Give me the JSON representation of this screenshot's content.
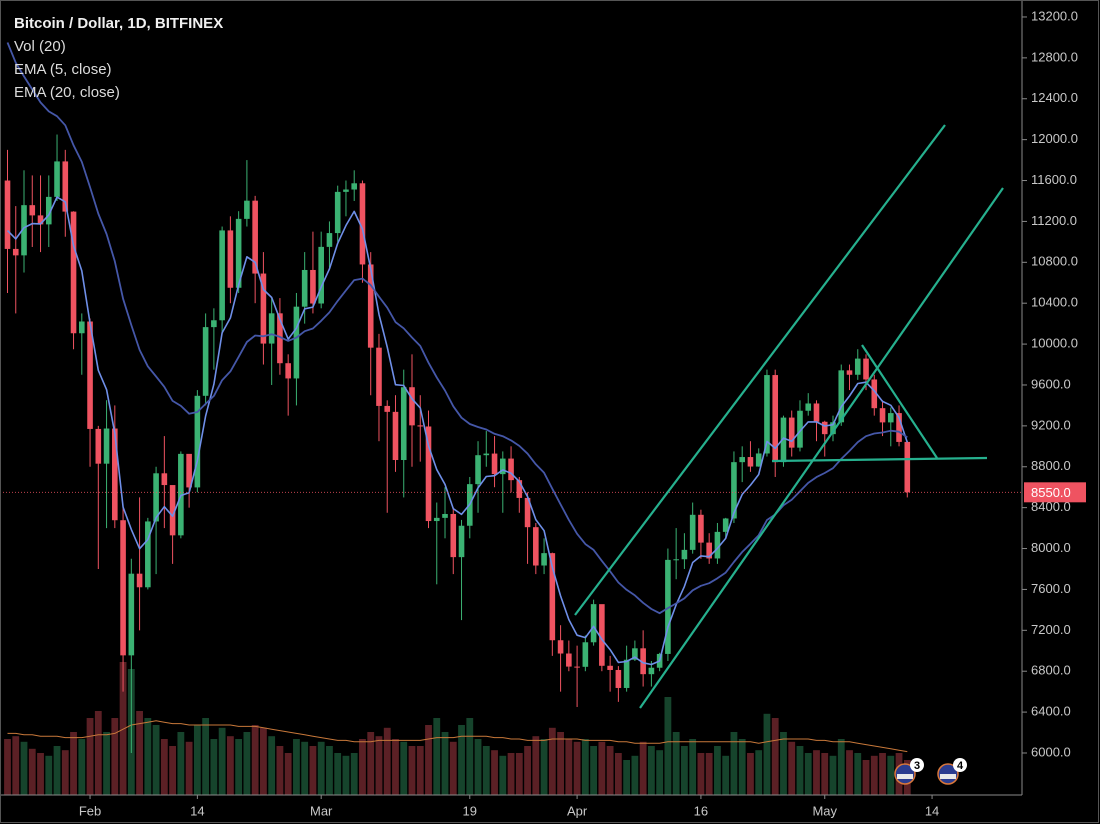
{
  "chart_data": {
    "type": "candlestick",
    "title": "Bitcoin / Dollar, 1D, BITFINEX",
    "categories": [
      null,
      null,
      null,
      null,
      null,
      null,
      null,
      null,
      null,
      null,
      "Feb",
      null,
      null,
      null,
      null,
      null,
      null,
      null,
      null,
      null,
      null,
      null,
      null,
      "14",
      null,
      null,
      null,
      null,
      null,
      null,
      null,
      null,
      null,
      null,
      null,
      null,
      null,
      null,
      "Mar",
      null,
      null,
      null,
      null,
      null,
      null,
      null,
      null,
      null,
      null,
      null,
      null,
      null,
      null,
      null,
      null,
      null,
      "19",
      null,
      null,
      null,
      null,
      null,
      null,
      null,
      null,
      null,
      null,
      null,
      null,
      "Apr",
      null,
      null,
      null,
      null,
      null,
      null,
      null,
      null,
      null,
      null,
      null,
      null,
      null,
      null,
      "16",
      null,
      null,
      null,
      null,
      null,
      null,
      null,
      null,
      null,
      null,
      null,
      null,
      null,
      null,
      "May",
      null,
      null,
      null,
      null,
      null,
      null,
      null,
      null,
      null,
      null,
      null,
      null,
      "14",
      null,
      null,
      null,
      null,
      null,
      null,
      null,
      null,
      null,
      null
    ],
    "open": [
      11600,
      10931,
      10868,
      11359,
      11259,
      11171,
      11440,
      11787,
      11296,
      10106,
      10221,
      9170,
      8830,
      9174,
      8277,
      6955,
      7754,
      7621,
      8265,
      8736,
      8621,
      8129,
      8926,
      8598,
      9494,
      10166,
      10233,
      11112,
      10551,
      11225,
      11403,
      10690,
      10005,
      10301,
      9813,
      9664,
      10366,
      10725,
      10397,
      10951,
      11086,
      11489,
      11512,
      11573,
      10779,
      9965,
      9395,
      9337,
      8866,
      9578,
      9205,
      9194,
      8269,
      8300,
      8338,
      7916,
      8223,
      8630,
      8913,
      8929,
      8728,
      8880,
      8669,
      8495,
      8209,
      7834,
      7955,
      7103,
      6973,
      6845,
      6843,
      7083,
      7456,
      6853,
      6812,
      6636,
      6912,
      7024,
      6771,
      6834,
      6969,
      7889,
      7895,
      7987,
      8330,
      8058,
      7903,
      8163,
      8294,
      8845,
      8895,
      8802,
      8930,
      9697,
      8845,
      9281,
      8987,
      9348,
      9419,
      9240,
      9119,
      9235,
      9743,
      9700,
      9858,
      9654,
      9373,
      9234,
      9325,
      9043,
      null,
      null,
      null,
      null,
      null,
      null,
      null,
      null,
      null,
      null,
      null,
      null,
      null
    ],
    "high": [
      11900,
      11350,
      11700,
      11650,
      11650,
      11650,
      12050,
      11900,
      11300,
      10300,
      10250,
      9200,
      9450,
      9400,
      8400,
      7900,
      8500,
      8300,
      8800,
      9100,
      8600,
      8950,
      8900,
      9550,
      10300,
      10350,
      11150,
      11250,
      11300,
      11800,
      11450,
      10900,
      10450,
      10450,
      9900,
      10500,
      10900,
      11100,
      11100,
      11200,
      11550,
      11600,
      11700,
      11600,
      10900,
      10100,
      9450,
      9500,
      9750,
      9900,
      9500,
      9350,
      8450,
      8600,
      8400,
      8280,
      8700,
      9050,
      9150,
      9100,
      8950,
      9000,
      8700,
      8550,
      8250,
      8100,
      7960,
      7250,
      7100,
      7050,
      7150,
      7500,
      7450,
      6950,
      6850,
      7050,
      7100,
      7200,
      6900,
      6980,
      8000,
      8200,
      8150,
      8450,
      8380,
      8150,
      8250,
      8300,
      8950,
      9000,
      9050,
      8980,
      9750,
      9750,
      9300,
      9350,
      9450,
      9520,
      9450,
      9250,
      9300,
      9800,
      9800,
      9950,
      9900,
      9700,
      9450,
      9380,
      9400,
      9050,
      null,
      null,
      null,
      null,
      null,
      null,
      null,
      null,
      null,
      null,
      null,
      null,
      null
    ],
    "low": [
      10500,
      10300,
      10700,
      10950,
      10900,
      10950,
      11400,
      11050,
      9950,
      9700,
      8800,
      7800,
      8200,
      8200,
      6600,
      6000,
      7200,
      7600,
      7750,
      8200,
      7850,
      8100,
      8400,
      8550,
      9400,
      9750,
      10100,
      10400,
      10500,
      11150,
      10400,
      9800,
      9600,
      9700,
      9300,
      9400,
      10200,
      10300,
      10350,
      10750,
      11000,
      11250,
      11400,
      10600,
      9500,
      9050,
      8350,
      8750,
      8500,
      8800,
      8850,
      8200,
      7650,
      8100,
      7750,
      7300,
      8100,
      8350,
      8800,
      8600,
      8350,
      8550,
      8350,
      7850,
      7750,
      7750,
      6950,
      6600,
      6800,
      6450,
      6800,
      7050,
      6800,
      6600,
      6500,
      6600,
      6900,
      6650,
      6650,
      6800,
      6900,
      7700,
      7800,
      7950,
      7900,
      7850,
      7850,
      8100,
      8250,
      8650,
      8750,
      8800,
      8900,
      8700,
      8800,
      8900,
      8950,
      9300,
      9050,
      8900,
      9050,
      9200,
      9550,
      9650,
      9550,
      9300,
      9100,
      9000,
      9000,
      8500,
      null,
      null,
      null,
      null,
      null,
      null,
      null,
      null,
      null,
      null,
      null,
      null,
      null
    ],
    "close": [
      10931,
      10868,
      11359,
      11259,
      11171,
      11440,
      11787,
      11296,
      10106,
      10221,
      9170,
      8830,
      9174,
      8277,
      6955,
      7754,
      7621,
      8265,
      8736,
      8621,
      8129,
      8926,
      8598,
      9494,
      10166,
      10233,
      11112,
      10551,
      11225,
      11403,
      10690,
      10005,
      10301,
      9813,
      9664,
      10366,
      10725,
      10397,
      10951,
      11086,
      11489,
      11512,
      11573,
      10779,
      9965,
      9395,
      9337,
      8866,
      9578,
      9205,
      9194,
      8269,
      8300,
      8338,
      7916,
      8223,
      8630,
      8913,
      8929,
      8728,
      8880,
      8669,
      8495,
      8209,
      7834,
      7955,
      7103,
      6973,
      6845,
      6843,
      7083,
      7456,
      6853,
      6812,
      6636,
      6912,
      7024,
      6771,
      6834,
      6969,
      7889,
      7895,
      7987,
      8330,
      8058,
      7903,
      8163,
      8294,
      8845,
      8895,
      8802,
      8930,
      9697,
      8845,
      9281,
      8987,
      9348,
      9419,
      9240,
      9119,
      9235,
      9743,
      9700,
      9858,
      9654,
      9373,
      9234,
      9325,
      9043,
      8550,
      null,
      null,
      null,
      null,
      null,
      null,
      null,
      null,
      null,
      null,
      null,
      null,
      null
    ],
    "up_color": "#3bb273",
    "down_color": "#ef5361",
    "ylim": [
      5589,
      13366
    ],
    "yticks": [
      {
        "value": 6000,
        "label": "6000.0"
      },
      {
        "value": 6400,
        "label": "6400.0"
      },
      {
        "value": 6800,
        "label": "6800.0"
      },
      {
        "value": 7200,
        "label": "7200.0"
      },
      {
        "value": 7600,
        "label": "7600.0"
      },
      {
        "value": 8000,
        "label": "8000.0"
      },
      {
        "value": 8400,
        "label": "8400.0"
      },
      {
        "value": 8800,
        "label": "8800.0"
      },
      {
        "value": 9200,
        "label": "9200.0"
      },
      {
        "value": 9600,
        "label": "9600.0"
      },
      {
        "value": 10000,
        "label": "10000.0"
      },
      {
        "value": 10400,
        "label": "10400.0"
      },
      {
        "value": 10800,
        "label": "10800.0"
      },
      {
        "value": 11200,
        "label": "11200.0"
      },
      {
        "value": 11600,
        "label": "11600.0"
      },
      {
        "value": 12000,
        "label": "12000.0"
      },
      {
        "value": 12400,
        "label": "12400.0"
      },
      {
        "value": 12800,
        "label": "12800.0"
      },
      {
        "value": 13200,
        "label": "13200.0"
      }
    ],
    "last_price": {
      "value": 8550,
      "label": "8550.0",
      "color": "#ef5361"
    },
    "volume": {
      "name": "Vol (20)",
      "ylim": [
        0,
        100
      ],
      "ma_color": "#c8783a",
      "values": [
        40,
        42,
        38,
        33,
        30,
        28,
        35,
        32,
        45,
        40,
        55,
        60,
        45,
        55,
        95,
        90,
        60,
        55,
        50,
        40,
        35,
        45,
        38,
        50,
        55,
        40,
        48,
        42,
        40,
        45,
        50,
        48,
        42,
        35,
        30,
        40,
        38,
        35,
        38,
        35,
        30,
        28,
        30,
        40,
        45,
        42,
        48,
        40,
        38,
        35,
        35,
        50,
        55,
        45,
        38,
        50,
        55,
        40,
        35,
        32,
        28,
        30,
        30,
        35,
        42,
        40,
        48,
        45,
        40,
        38,
        40,
        35,
        38,
        35,
        30,
        25,
        28,
        38,
        35,
        32,
        70,
        45,
        35,
        40,
        30,
        30,
        35,
        28,
        45,
        40,
        30,
        32,
        58,
        55,
        45,
        38,
        35,
        30,
        32,
        30,
        28,
        40,
        32,
        30,
        25,
        28,
        30,
        28,
        30,
        25,
        null,
        null,
        null,
        null,
        null,
        null,
        null,
        null,
        null,
        null,
        null,
        null,
        null
      ],
      "ma": [
        44,
        44,
        43,
        43,
        42,
        42,
        42,
        41,
        41,
        41,
        42,
        43,
        43,
        44,
        47,
        50,
        51,
        52,
        53,
        52,
        51,
        51,
        50,
        50,
        50,
        50,
        50,
        50,
        49,
        49,
        49,
        48,
        47,
        46,
        45,
        44,
        43,
        42,
        41,
        40,
        39,
        39,
        38,
        38,
        38,
        39,
        39,
        39,
        39,
        39,
        39,
        40,
        41,
        41,
        41,
        42,
        42,
        42,
        42,
        41,
        41,
        40,
        40,
        39,
        39,
        39,
        40,
        40,
        40,
        40,
        39,
        39,
        39,
        39,
        38,
        38,
        37,
        37,
        37,
        37,
        38,
        38,
        38,
        38,
        38,
        38,
        38,
        38,
        38,
        38,
        38,
        37,
        38,
        39,
        40,
        40,
        40,
        40,
        39,
        39,
        38,
        38,
        38,
        37,
        36,
        35,
        34,
        33,
        32,
        31,
        null,
        null,
        null,
        null,
        null,
        null,
        null,
        null,
        null,
        null,
        null,
        null,
        null
      ]
    },
    "series": [
      {
        "name": "EMA (5, close)",
        "color": "#6f8fe8",
        "values": [
          11110,
          11029,
          11139,
          11179,
          11176,
          11264,
          11438,
          11391,
          10963,
          10716,
          10201,
          9744,
          9554,
          9128,
          8404,
          8187,
          7998,
          8087,
          8303,
          8409,
          8316,
          8519,
          8545,
          8861,
          9296,
          9608,
          10109,
          10256,
          10579,
          10854,
          10799,
          10534,
          10456,
          10242,
          10049,
          10155,
          10345,
          10362,
          10558,
          10734,
          10986,
          11161,
          11298,
          11125,
          10738,
          10290,
          9972,
          9603,
          9595,
          9465,
          9375,
          9006,
          8771,
          8627,
          8390,
          8334,
          8433,
          8593,
          8705,
          8713,
          8769,
          8736,
          8656,
          8507,
          8283,
          8174,
          7817,
          7536,
          7306,
          7152,
          7129,
          7238,
          7110,
          7011,
          6886,
          6895,
          6938,
          6882,
          6866,
          6900,
          7230,
          7452,
          7630,
          7863,
          7928,
          7920,
          8001,
          8099,
          8348,
          8530,
          8621,
          8724,
          9048,
          8980,
          9080,
          9049,
          9149,
          9239,
          9239,
          9199,
          9211,
          9388,
          9492,
          9614,
          9627,
          9542,
          9439,
          9401,
          9282,
          9038,
          null,
          null,
          null,
          null,
          null,
          null,
          null,
          null,
          null,
          null,
          null,
          null,
          null
        ]
      },
      {
        "name": "EMA (20, close)",
        "color": "#4557a8",
        "values": [
          12950,
          12752,
          12619,
          12490,
          12364,
          12276,
          12229,
          12140,
          11946,
          11782,
          11533,
          11276,
          11076,
          10810,
          10443,
          10187,
          9943,
          9783,
          9683,
          9582,
          9444,
          9395,
          9319,
          9336,
          9415,
          9493,
          9647,
          9733,
          9875,
          10020,
          10084,
          10076,
          10097,
          10070,
          10031,
          10063,
          10126,
          10152,
          10228,
          10310,
          10422,
          10526,
          10626,
          10641,
          10577,
          10464,
          10357,
          10215,
          10154,
          10064,
          9981,
          9818,
          9673,
          9546,
          9391,
          9280,
          9218,
          9189,
          9164,
          9122,
          9099,
          9058,
          9004,
          8928,
          8824,
          8741,
          8585,
          8432,
          8281,
          8144,
          8043,
          7987,
          7879,
          7777,
          7668,
          7596,
          7542,
          7469,
          7409,
          7367,
          7417,
          7463,
          7513,
          7591,
          7635,
          7661,
          7709,
          7765,
          7868,
          7966,
          8046,
          8130,
          8279,
          8333,
          8423,
          8477,
          8560,
          8642,
          8699,
          8739,
          8786,
          8877,
          8955,
          9041,
          9099,
          9125,
          9135,
          9153,
          9143,
          9087,
          null,
          null,
          null,
          null,
          null,
          null,
          null,
          null,
          null,
          null,
          null,
          null,
          null
        ]
      }
    ],
    "event_badges": [
      "3",
      "4"
    ]
  }
}
